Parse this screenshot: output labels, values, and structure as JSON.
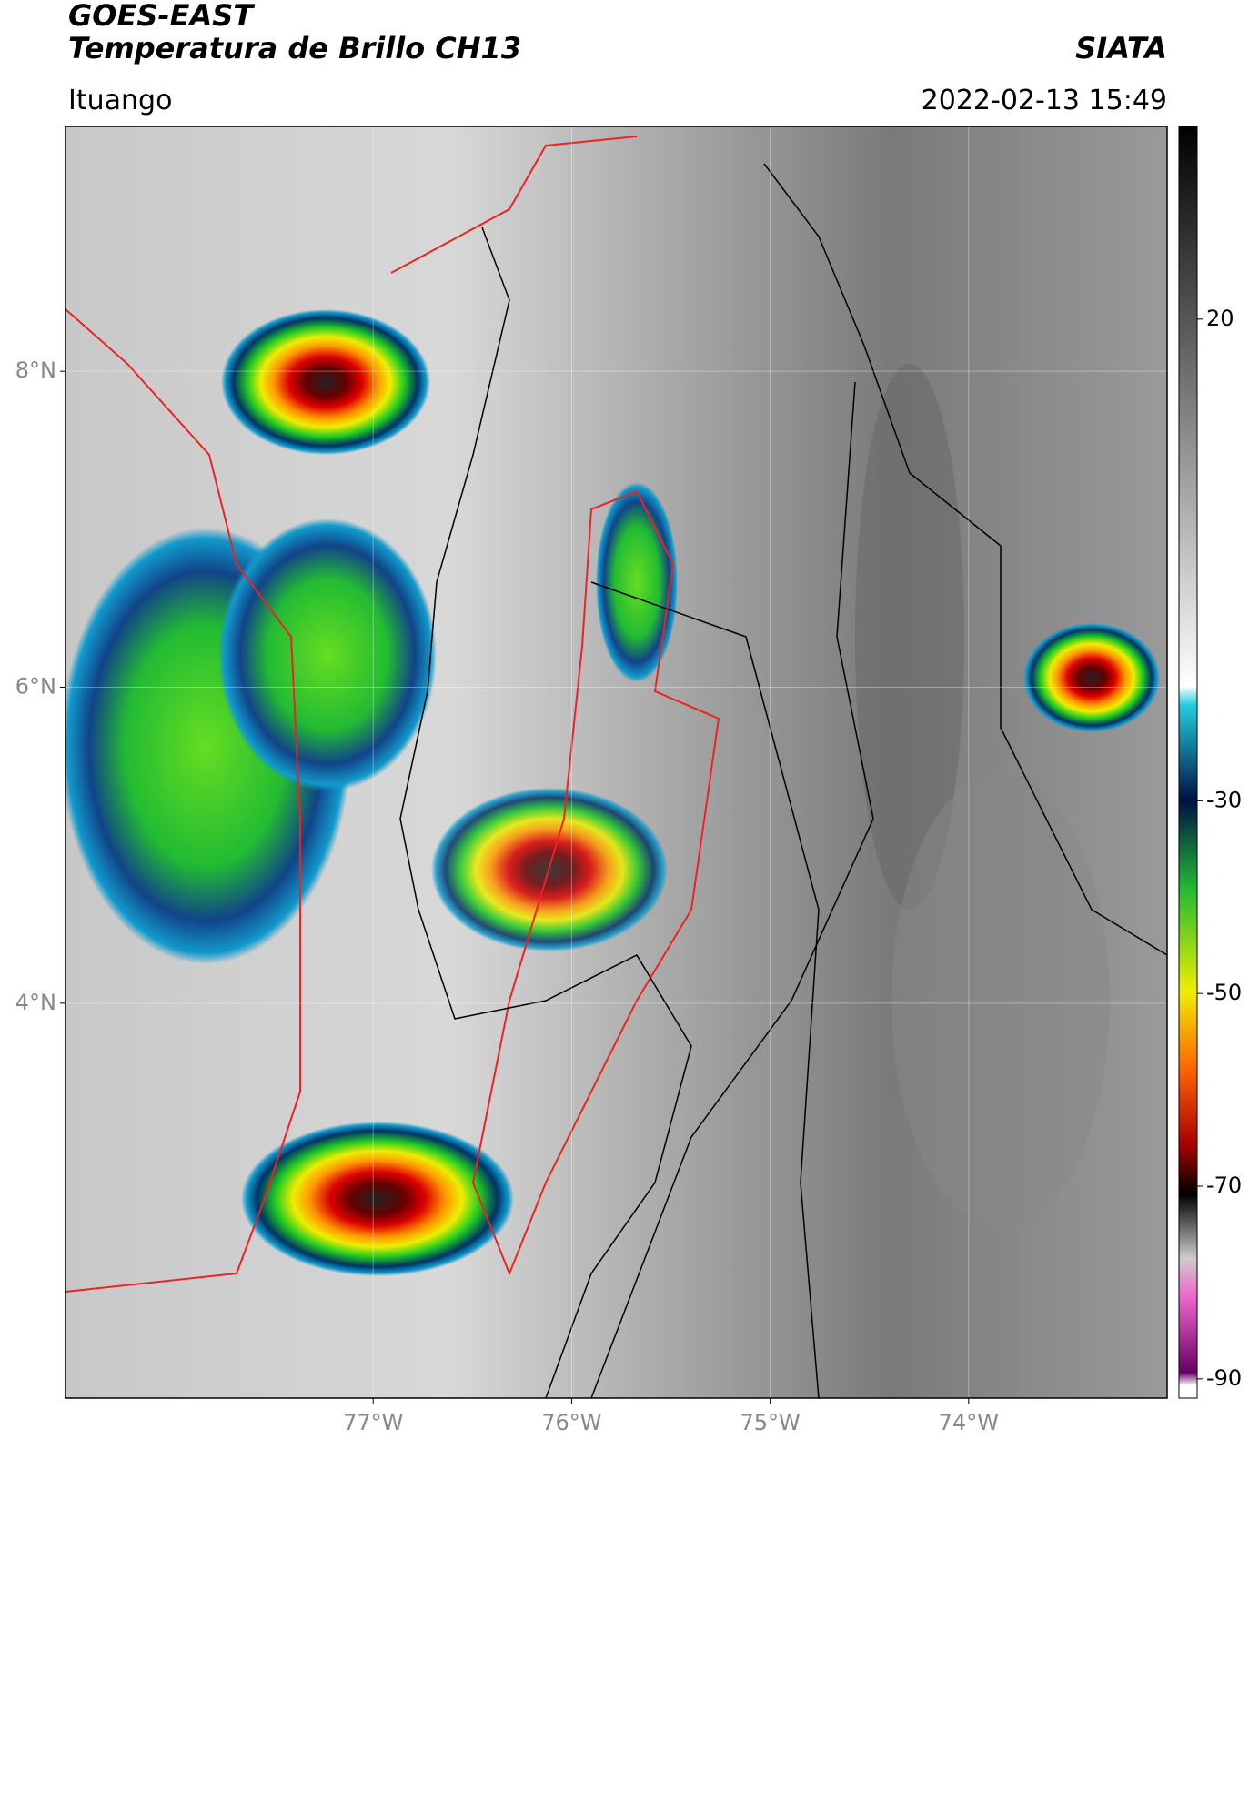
{
  "header": {
    "title": "GOES-EAST",
    "subtitle": "Temperatura de Brillo CH13",
    "brand": "SIATA",
    "location": "Ituango",
    "timestamp": "2022-02-13 15:49"
  },
  "map": {
    "xlim": [
      -78.55,
      -73.0
    ],
    "ylim": [
      1.5,
      9.55
    ],
    "xticks": [
      {
        "value": -77,
        "label": "77°W"
      },
      {
        "value": -76,
        "label": "76°W"
      },
      {
        "value": -75,
        "label": "75°W"
      },
      {
        "value": -74,
        "label": "74°W"
      }
    ],
    "yticks": [
      {
        "value": 8,
        "label": "8°N"
      },
      {
        "value": 6,
        "label": "6°N"
      },
      {
        "value": 4,
        "label": "4°N"
      }
    ]
  },
  "colorbar": {
    "lim": [
      -92,
      40
    ],
    "ticks": [
      20,
      -30,
      -50,
      -70,
      -90
    ]
  }
}
